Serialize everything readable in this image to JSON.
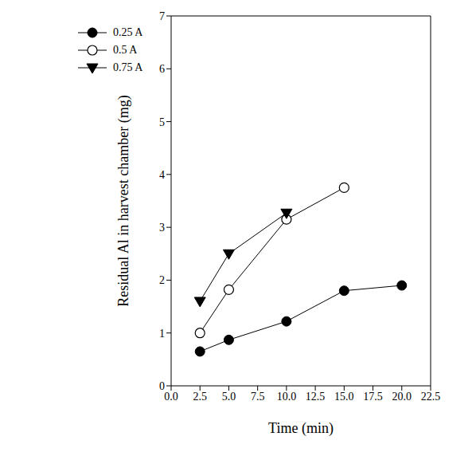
{
  "chart_data": {
    "type": "line",
    "x_label": "Time (min)",
    "y_label": "Residual Al in harvest chamber (mg)",
    "xlim": [
      0,
      22.5
    ],
    "xticks": [
      {
        "value": 0,
        "label": "0.0"
      },
      {
        "value": 2.5,
        "label": "2.5"
      },
      {
        "value": 5,
        "label": "5.0"
      },
      {
        "value": 7.5,
        "label": "7.5"
      },
      {
        "value": 10,
        "label": "10.0"
      },
      {
        "value": 12.5,
        "label": "12.5"
      },
      {
        "value": 15,
        "label": "15.0"
      },
      {
        "value": 17.5,
        "label": "17.5"
      },
      {
        "value": 20,
        "label": "20.0"
      },
      {
        "value": 22.5,
        "label": "22.5"
      }
    ],
    "ylim": [
      0,
      7
    ],
    "yticks": [
      0,
      1,
      2,
      3,
      4,
      5,
      6,
      7
    ],
    "grid": false,
    "legend": "upper left",
    "series": [
      {
        "name": "0.25 A",
        "color": "#000000",
        "marker": "filled_circle",
        "x": [
          2.5,
          5,
          10,
          15,
          20
        ],
        "values": [
          0.65,
          0.87,
          1.22,
          1.8,
          1.9
        ]
      },
      {
        "name": "0.5 A",
        "color": "#000000",
        "marker": "open_circle",
        "x": [
          2.5,
          5,
          10,
          15
        ],
        "values": [
          1.0,
          1.82,
          3.15,
          3.75
        ]
      },
      {
        "name": "0.75 A",
        "color": "#000000",
        "marker": "triangle_down",
        "x": [
          2.5,
          5,
          10
        ],
        "values": [
          1.6,
          2.5,
          3.27
        ]
      }
    ]
  }
}
